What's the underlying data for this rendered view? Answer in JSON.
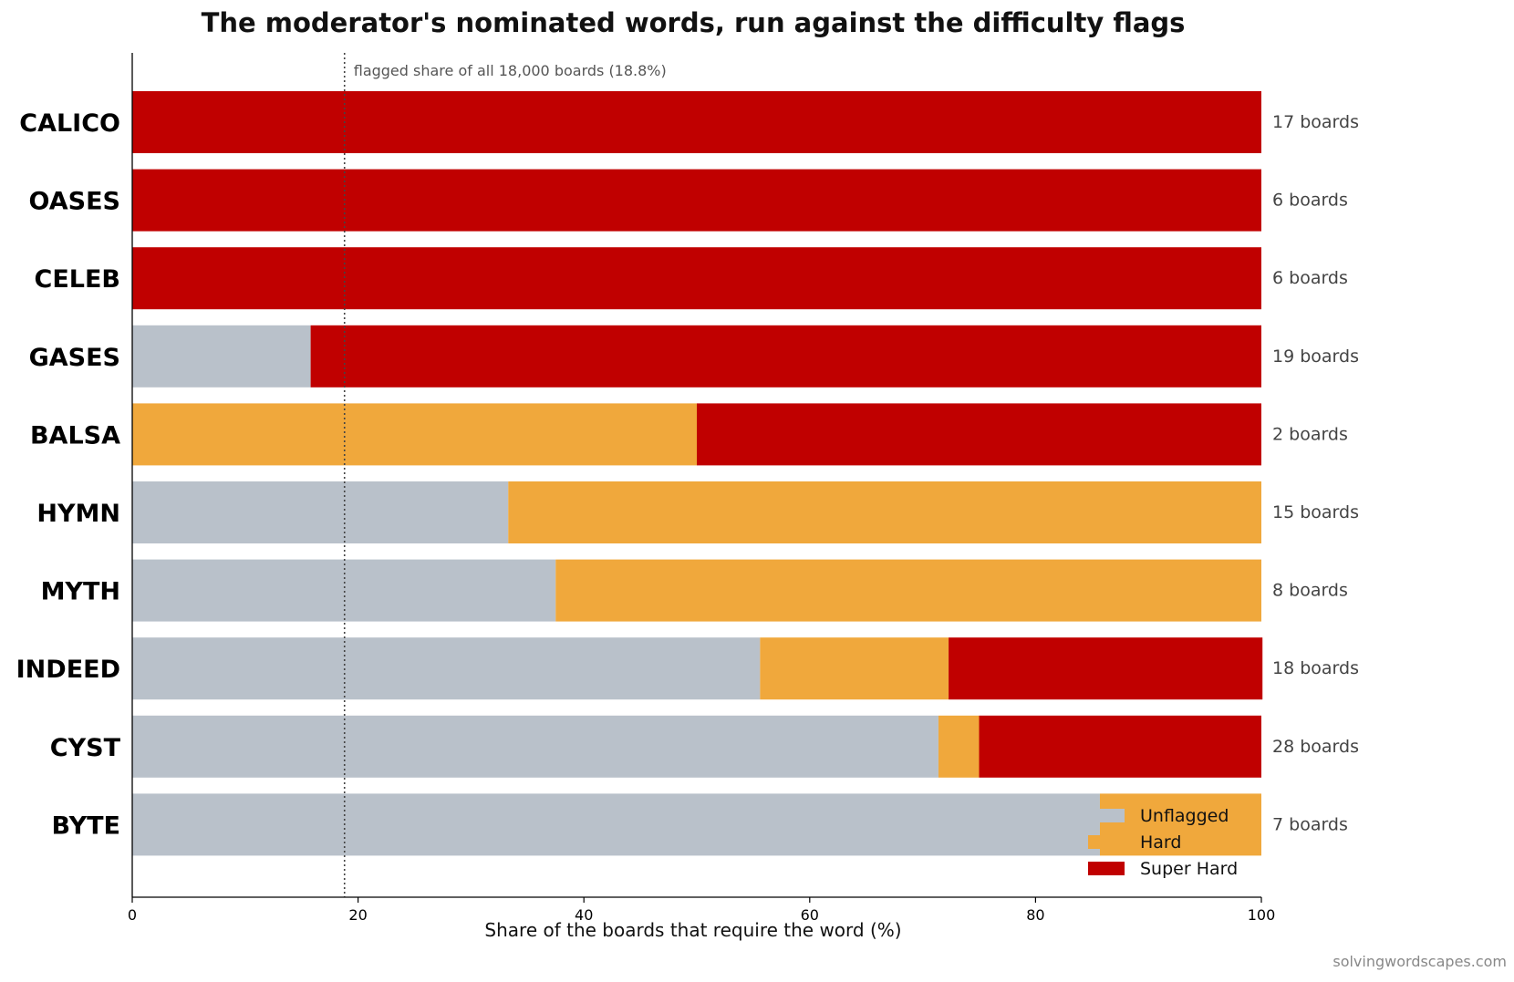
{
  "chart_data": {
    "type": "bar",
    "orientation": "horizontal",
    "stacked": true,
    "title": "The moderator's nominated words, run against the difficulty flags",
    "xlabel": "Share of the boards that require the word (%)",
    "ylabel": "",
    "xlim": [
      0,
      100
    ],
    "xticks": [
      0,
      20,
      40,
      60,
      80,
      100
    ],
    "categories": [
      "CALICO",
      "OASES",
      "CELEB",
      "GASES",
      "BALSA",
      "HYMN",
      "MYTH",
      "INDEED",
      "CYST",
      "BYTE"
    ],
    "counts": [
      "17 boards",
      "6 boards",
      "6 boards",
      "19 boards",
      "2 boards",
      "15 boards",
      "8 boards",
      "18 boards",
      "28 boards",
      "7 boards"
    ],
    "series": [
      {
        "name": "Unflagged",
        "color": "#b9c1ca",
        "values": [
          0,
          0,
          0,
          15.8,
          0,
          33.3,
          37.5,
          55.6,
          71.4,
          85.7
        ]
      },
      {
        "name": "Hard",
        "color": "#f0a83c",
        "values": [
          0,
          0,
          0,
          0,
          50.0,
          66.7,
          62.5,
          16.7,
          3.6,
          14.3
        ]
      },
      {
        "name": "Super Hard",
        "color": "#c00000",
        "values": [
          100,
          100,
          100,
          84.2,
          50.0,
          0,
          0,
          27.8,
          25.0,
          0
        ]
      }
    ],
    "reference_line": {
      "value": 18.8,
      "label": "flagged share of all 18,000 boards (18.8%)"
    },
    "legend_position": "lower-right",
    "grid": false
  },
  "credit": "solvingwordscapes.com"
}
